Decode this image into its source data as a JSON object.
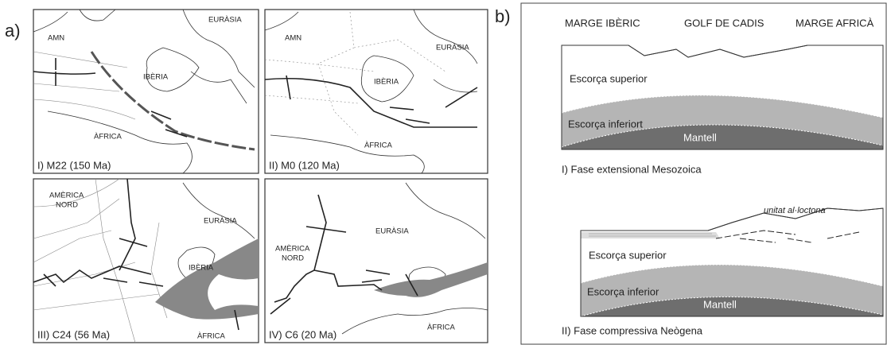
{
  "panel_a": {
    "label": "a)",
    "maps": [
      {
        "labels": [
          "AMN",
          "IBÈRIA",
          "EURÀSIA",
          "ÀFRICA"
        ],
        "caption": "I) M22 (150 Ma)"
      },
      {
        "labels": [
          "AMN",
          "EURÀSIA",
          "IBÈRIA",
          "ÀFRICA"
        ],
        "caption": "II) M0 (120 Ma)"
      },
      {
        "labels": [
          "AMÈRICA",
          "NORD",
          "EURÀSIA",
          "IBÈRIA",
          "ÀFRICA"
        ],
        "caption": "III) C24 (56 Ma)"
      },
      {
        "labels": [
          "EURÀSIA",
          "AMÈRICA",
          "NORD",
          "ÀFRICA"
        ],
        "caption": "IV) C6 (20 Ma)"
      }
    ]
  },
  "panel_b": {
    "label": "b)",
    "header": [
      "MARGE IBÈRIC",
      "GOLF DE CADIS",
      "MARGE AFRICÀ"
    ],
    "sections": [
      {
        "labels": [
          "Escorça superior",
          "Escorça inferiort",
          "Mantell"
        ],
        "caption": "I) Fase extensional Mesozoica"
      },
      {
        "labels": [
          "unitat al·loctona",
          "Escorça superior",
          "Escorça inferior",
          "Mantell"
        ],
        "caption": "II) Fase compressiva Neògena"
      }
    ]
  }
}
